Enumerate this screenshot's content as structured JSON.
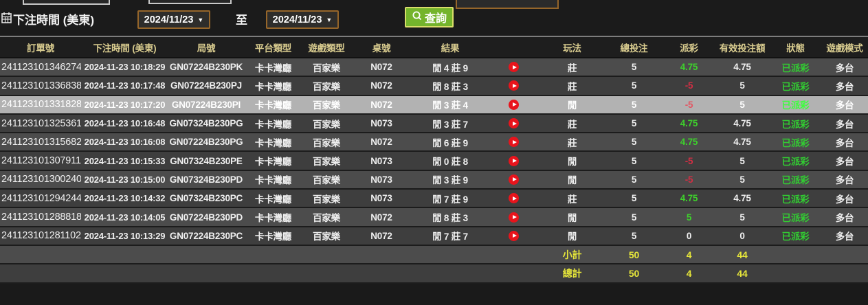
{
  "filter_bar": {
    "label": "下注時間 (美東)",
    "date_from": "2024/11/23",
    "to_label": "至",
    "date_to": "2024/11/23",
    "dropdown_icon": "▼",
    "search_button": {
      "label": "查詢"
    }
  },
  "icons": {
    "calendar": "calendar-grid",
    "search": "magnifier",
    "play": "red-circle-play-triangle",
    "dropdown": "▼"
  },
  "table": {
    "columns": [
      "訂單號",
      "下注時間 (美東)",
      "局號",
      "平台類型",
      "遊戲類型",
      "桌號",
      "結果",
      "",
      "玩法",
      "總投注",
      "派彩",
      "有效投注額",
      "狀態",
      "遊戲模式"
    ],
    "rows": [
      {
        "order": "241123101346274",
        "time": "2024-11-23 10:18:29",
        "round": "GN07224B230PK",
        "platform": "卡卡灣廳",
        "game_type": "百家樂",
        "table_no": "N072",
        "result": "閒 4 莊 9",
        "play": "莊",
        "total_bet": "5",
        "payout": "4.75",
        "payout_color": "green",
        "valid_bet": "4.75",
        "status": "已派彩",
        "mode": "多台",
        "highlighted": false
      },
      {
        "order": "241123101336838",
        "time": "2024-11-23 10:17:48",
        "round": "GN07224B230PJ",
        "platform": "卡卡灣廳",
        "game_type": "百家樂",
        "table_no": "N072",
        "result": "閒 8 莊 3",
        "play": "莊",
        "total_bet": "5",
        "payout": "-5",
        "payout_color": "red",
        "valid_bet": "5",
        "status": "已派彩",
        "mode": "多台",
        "highlighted": false
      },
      {
        "order": "241123101331828",
        "time": "2024-11-23 10:17:20",
        "round": "GN07224B230PI",
        "platform": "卡卡灣廳",
        "game_type": "百家樂",
        "table_no": "N072",
        "result": "閒 3 莊 4",
        "play": "閒",
        "total_bet": "5",
        "payout": "-5",
        "payout_color": "red",
        "valid_bet": "5",
        "status": "已派彩",
        "mode": "多台",
        "highlighted": true
      },
      {
        "order": "241123101325361",
        "time": "2024-11-23 10:16:48",
        "round": "GN07324B230PG",
        "platform": "卡卡灣廳",
        "game_type": "百家樂",
        "table_no": "N073",
        "result": "閒 3 莊 7",
        "play": "莊",
        "total_bet": "5",
        "payout": "4.75",
        "payout_color": "green",
        "valid_bet": "4.75",
        "status": "已派彩",
        "mode": "多台",
        "highlighted": false
      },
      {
        "order": "241123101315682",
        "time": "2024-11-23 10:16:08",
        "round": "GN07224B230PG",
        "platform": "卡卡灣廳",
        "game_type": "百家樂",
        "table_no": "N072",
        "result": "閒 6 莊 9",
        "play": "莊",
        "total_bet": "5",
        "payout": "4.75",
        "payout_color": "green",
        "valid_bet": "4.75",
        "status": "已派彩",
        "mode": "多台",
        "highlighted": false
      },
      {
        "order": "241123101307911",
        "time": "2024-11-23 10:15:33",
        "round": "GN07324B230PE",
        "platform": "卡卡灣廳",
        "game_type": "百家樂",
        "table_no": "N073",
        "result": "閒 0 莊 8",
        "play": "閒",
        "total_bet": "5",
        "payout": "-5",
        "payout_color": "red",
        "valid_bet": "5",
        "status": "已派彩",
        "mode": "多台",
        "highlighted": false
      },
      {
        "order": "241123101300240",
        "time": "2024-11-23 10:15:00",
        "round": "GN07324B230PD",
        "platform": "卡卡灣廳",
        "game_type": "百家樂",
        "table_no": "N073",
        "result": "閒 3 莊 9",
        "play": "閒",
        "total_bet": "5",
        "payout": "-5",
        "payout_color": "red",
        "valid_bet": "5",
        "status": "已派彩",
        "mode": "多台",
        "highlighted": false
      },
      {
        "order": "241123101294244",
        "time": "2024-11-23 10:14:32",
        "round": "GN07324B230PC",
        "platform": "卡卡灣廳",
        "game_type": "百家樂",
        "table_no": "N073",
        "result": "閒 7 莊 9",
        "play": "莊",
        "total_bet": "5",
        "payout": "4.75",
        "payout_color": "green",
        "valid_bet": "4.75",
        "status": "已派彩",
        "mode": "多台",
        "highlighted": false
      },
      {
        "order": "241123101288818",
        "time": "2024-11-23 10:14:05",
        "round": "GN07224B230PD",
        "platform": "卡卡灣廳",
        "game_type": "百家樂",
        "table_no": "N072",
        "result": "閒 8 莊 3",
        "play": "閒",
        "total_bet": "5",
        "payout": "5",
        "payout_color": "green",
        "valid_bet": "5",
        "status": "已派彩",
        "mode": "多台",
        "highlighted": false
      },
      {
        "order": "241123101281102",
        "time": "2024-11-23 10:13:29",
        "round": "GN07224B230PC",
        "platform": "卡卡灣廳",
        "game_type": "百家樂",
        "table_no": "N072",
        "result": "閒 7 莊 7",
        "play": "閒",
        "total_bet": "5",
        "payout": "0",
        "payout_color": "white",
        "valid_bet": "0",
        "status": "已派彩",
        "mode": "多台",
        "highlighted": false
      }
    ],
    "subtotal_row": {
      "label": "小計",
      "total_bet": "50",
      "payout": "4",
      "valid_bet": "44"
    },
    "total_row": {
      "label": "總計",
      "total_bet": "50",
      "payout": "4",
      "valid_bet": "44"
    }
  },
  "colors": {
    "accent_green": "#74b42c",
    "date_border_orange": "#96662a",
    "header_text": "#d9cc8f",
    "totals_yellow": "#e6e63a",
    "win_green": "#3ed12c",
    "lose_red": "#d02f44",
    "status_green": "#32cd32",
    "highlight_row_bg": "#b2b2b2",
    "play_icon_red": "#e8141c"
  }
}
